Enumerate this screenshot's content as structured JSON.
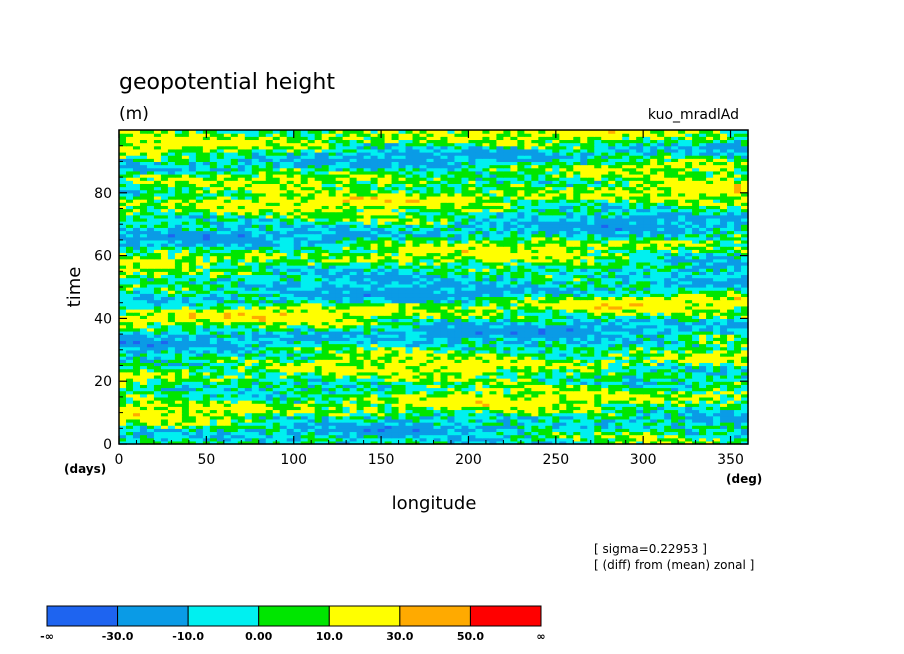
{
  "chart_data": {
    "type": "heatmap",
    "title": "geopotential height",
    "units": "(m)",
    "run_label": "kuo_mradlAd",
    "xlabel": "longitude",
    "ylabel": "time",
    "x_unit_label": "(deg)",
    "y_unit_label": "(days)",
    "xlim": [
      0,
      360
    ],
    "ylim": [
      0,
      100
    ],
    "x_ticks": [
      0,
      50,
      100,
      150,
      200,
      250,
      300,
      350
    ],
    "y_ticks": [
      0,
      20,
      40,
      60,
      80
    ],
    "annotations": [
      "[ sigma=0.22953 ]",
      "[ (diff) from (mean) zonal ]"
    ],
    "colorbar": {
      "boundaries": [
        "-∞",
        "-30.0",
        "-10.0",
        "0.00",
        "10.0",
        "30.0",
        "50.0",
        "∞"
      ],
      "colors": [
        "#1e64f0",
        "#0a9be6",
        "#00f0f0",
        "#00e600",
        "#ffff00",
        "#ffaa00",
        "#ff0000"
      ]
    },
    "field_pattern": "banded anomalies drifting eastward with time; warm bands (10 to 50) near days 10, 22, 38-42, 58, 72-78, 95; cold bands (below -10) near days 2, 30-34, 45, 65, 88"
  }
}
